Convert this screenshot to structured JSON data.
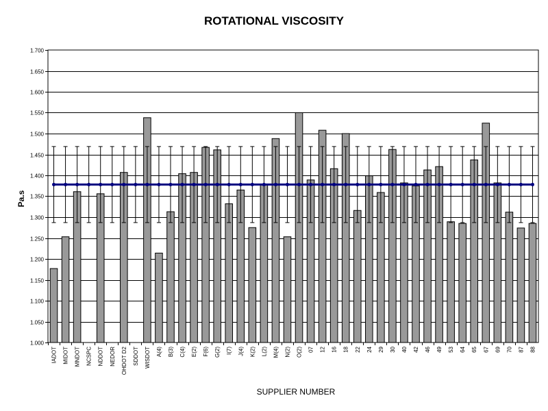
{
  "chart_data": {
    "type": "bar",
    "title": "ROTATIONAL VISCOSITY",
    "xlabel": "SUPPLIER NUMBER",
    "ylabel": "Pa.s",
    "ylim": [
      1.0,
      1.7
    ],
    "yticks": [
      "1.000",
      "1.050",
      "1.100",
      "1.150",
      "1.200",
      "1.250",
      "1.300",
      "1.350",
      "1.400",
      "1.450",
      "1.500",
      "1.550",
      "1.600",
      "1.650",
      "1.700"
    ],
    "grid": "horizontal",
    "categories": [
      "IADOT",
      "MIDOT",
      "MNDOT",
      "NCSPC",
      "NDDOT",
      "NEDOR",
      "OHDOT D2",
      "SDDOT",
      "WISDOT",
      "A(4)",
      "B(3)",
      "C(4)",
      "E(2)",
      "F(6)",
      "G(2)",
      "I(7)",
      "J(4)",
      "K(2)",
      "L(2)",
      "M(4)",
      "N(2)",
      "O(2)",
      "07",
      "12",
      "16",
      "18",
      "22",
      "24",
      "29",
      "30",
      "40",
      "42",
      "46",
      "49",
      "53",
      "64",
      "65",
      "67",
      "69",
      "70",
      "87",
      "88"
    ],
    "values": [
      1.177,
      1.253,
      1.361,
      null,
      1.356,
      null,
      1.407,
      null,
      1.538,
      1.214,
      1.313,
      1.404,
      1.407,
      1.467,
      1.461,
      1.332,
      1.365,
      1.275,
      1.377,
      1.488,
      1.253,
      1.55,
      1.389,
      1.508,
      1.416,
      1.5,
      1.316,
      1.399,
      1.359,
      1.462,
      1.382,
      1.375,
      1.413,
      1.421,
      1.289,
      1.285,
      1.437,
      1.525,
      1.382,
      1.312,
      1.274,
      1.285
    ],
    "reference_line": {
      "value": 1.378,
      "error_upper": 1.469,
      "error_lower": 1.287
    },
    "colors": {
      "bar": "#999999",
      "reference_line": "#00007f",
      "grid": "#000000"
    }
  }
}
